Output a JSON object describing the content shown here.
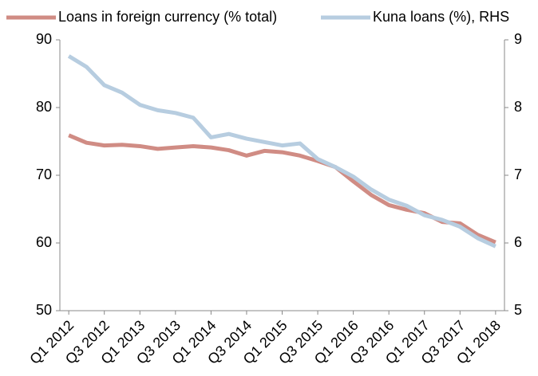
{
  "chart_data": {
    "type": "line",
    "categories": [
      "Q1 2012",
      null,
      "Q3 2012",
      null,
      "Q1 2013",
      null,
      "Q3 2013",
      null,
      "Q1 2014",
      null,
      "Q3 2014",
      null,
      "Q1 2015",
      null,
      "Q3 2015",
      null,
      "Q1 2016",
      null,
      "Q3 2016",
      null,
      "Q1 2017",
      null,
      "Q3 2017",
      null,
      "Q1 2018"
    ],
    "series": [
      {
        "name": "Loans in foreign currency (% total)",
        "color": "#d08c84",
        "values": [
          75.9,
          74.8,
          74.4,
          74.5,
          74.3,
          73.9,
          74.1,
          74.3,
          74.1,
          73.7,
          72.9,
          73.6,
          73.4,
          72.9,
          72.1,
          71.2,
          69.1,
          67.1,
          65.6,
          64.9,
          64.4,
          63.1,
          62.9,
          61.2,
          60.1
        ]
      },
      {
        "name": "Kuna loans (%), RHS",
        "color": "#b7cde0",
        "axis": "y2",
        "values": [
          8.76,
          8.6,
          8.33,
          8.22,
          8.04,
          7.96,
          7.92,
          7.85,
          7.56,
          7.61,
          7.54,
          7.49,
          7.44,
          7.47,
          7.24,
          7.12,
          6.98,
          6.79,
          6.64,
          6.55,
          6.41,
          6.34,
          6.24,
          6.07,
          5.95
        ]
      }
    ],
    "ylim": [
      50,
      90
    ],
    "yticks": [
      50,
      60,
      70,
      80,
      90
    ],
    "y2lim": [
      5,
      9
    ],
    "y2ticks": [
      5,
      6,
      7,
      8,
      9
    ]
  }
}
